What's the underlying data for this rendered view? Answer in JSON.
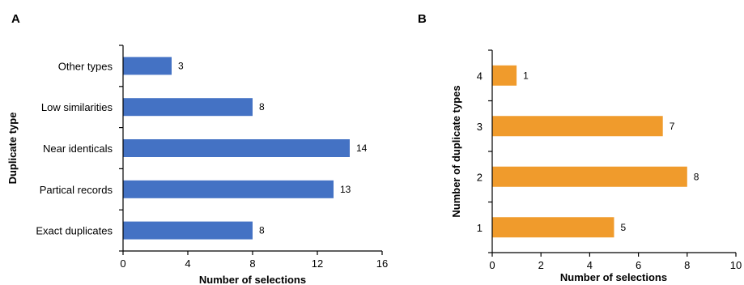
{
  "chart_data": [
    {
      "panel": "A",
      "type": "bar",
      "orientation": "horizontal",
      "categories": [
        "Exact duplicates",
        "Partical records",
        "Near identicals",
        "Low similarities",
        "Other types"
      ],
      "values": [
        8,
        13,
        14,
        8,
        3
      ],
      "xlabel": "Number of selections",
      "ylabel": "Duplicate type",
      "xlim": [
        0,
        16
      ],
      "xticks": [
        0,
        4,
        8,
        12,
        16
      ],
      "color": "#4472C4",
      "grid": false
    },
    {
      "panel": "B",
      "type": "bar",
      "orientation": "horizontal",
      "categories": [
        "1",
        "2",
        "3",
        "4"
      ],
      "values": [
        5,
        8,
        7,
        1
      ],
      "xlabel": "Number of selections",
      "ylabel": "Number of duplicate types",
      "xlim": [
        0,
        10
      ],
      "xticks": [
        0,
        2,
        4,
        6,
        8,
        10
      ],
      "color": "#F09B2C",
      "grid": false
    }
  ]
}
